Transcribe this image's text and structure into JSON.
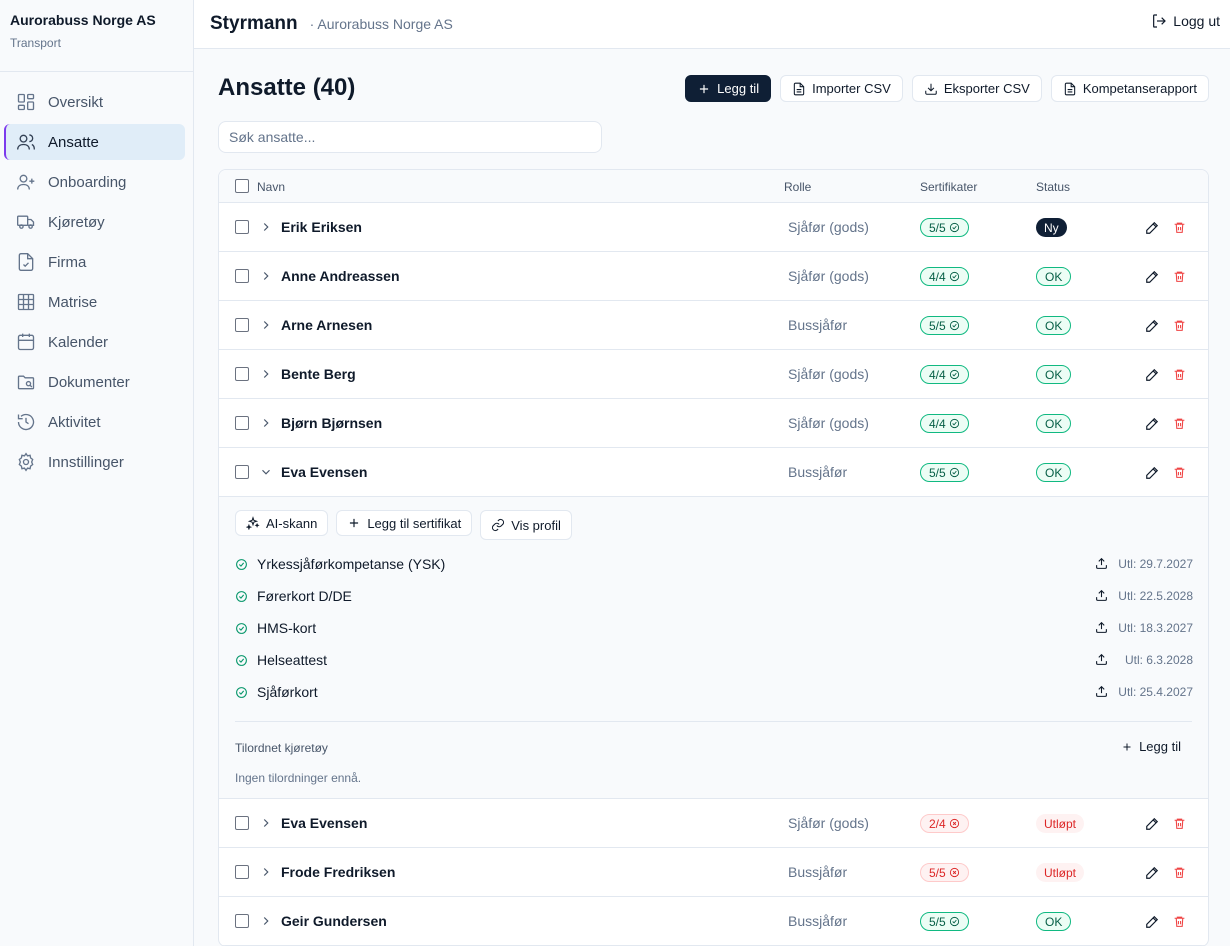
{
  "org": {
    "name": "Aurorabuss Norge AS",
    "sub": "Transport"
  },
  "nav": [
    {
      "label": "Oversikt",
      "icon": "dashboard-icon"
    },
    {
      "label": "Ansatte",
      "icon": "users-icon",
      "active": true
    },
    {
      "label": "Onboarding",
      "icon": "user-plus-icon"
    },
    {
      "label": "Kjøretøy",
      "icon": "truck-icon"
    },
    {
      "label": "Firma",
      "icon": "file-check-icon"
    },
    {
      "label": "Matrise",
      "icon": "grid-icon"
    },
    {
      "label": "Kalender",
      "icon": "calendar-icon"
    },
    {
      "label": "Dokumenter",
      "icon": "folder-icon"
    },
    {
      "label": "Aktivitet",
      "icon": "history-icon"
    },
    {
      "label": "Innstillinger",
      "icon": "gear-icon"
    }
  ],
  "header": {
    "title": "Styrmann",
    "subtitle": "· Aurorabuss Norge AS",
    "logout": "Logg ut"
  },
  "page": {
    "title": "Ansatte (40)",
    "actions": {
      "add": "Legg til",
      "import": "Importer CSV",
      "export": "Eksporter CSV",
      "report": "Kompetanserapport"
    },
    "search_placeholder": "Søk ansatte..."
  },
  "table": {
    "columns": {
      "name": "Navn",
      "role": "Rolle",
      "certs": "Sertifikater",
      "status": "Status"
    },
    "rows": [
      {
        "name": "Erik Eriksen",
        "role": "Sjåfør (gods)",
        "certs": "5/5",
        "cert_state": "ok",
        "status": "Ny",
        "status_kind": "ny"
      },
      {
        "name": "Anne Andreassen",
        "role": "Sjåfør (gods)",
        "certs": "4/4",
        "cert_state": "ok",
        "status": "OK",
        "status_kind": "ok"
      },
      {
        "name": "Arne Arnesen",
        "role": "Bussjåfør",
        "certs": "5/5",
        "cert_state": "ok",
        "status": "OK",
        "status_kind": "ok"
      },
      {
        "name": "Bente Berg",
        "role": "Sjåfør (gods)",
        "certs": "4/4",
        "cert_state": "ok",
        "status": "OK",
        "status_kind": "ok"
      },
      {
        "name": "Bjørn Bjørnsen",
        "role": "Sjåfør (gods)",
        "certs": "4/4",
        "cert_state": "ok",
        "status": "OK",
        "status_kind": "ok"
      },
      {
        "name": "Eva Evensen",
        "role": "Bussjåfør",
        "certs": "5/5",
        "cert_state": "ok",
        "status": "OK",
        "status_kind": "ok",
        "expanded": true
      },
      {
        "name": "Eva Evensen",
        "role": "Sjåfør (gods)",
        "certs": "2/4",
        "cert_state": "bad",
        "status": "Utløpt",
        "status_kind": "exp"
      },
      {
        "name": "Frode Fredriksen",
        "role": "Bussjåfør",
        "certs": "5/5",
        "cert_state": "bad",
        "status": "Utløpt",
        "status_kind": "exp"
      },
      {
        "name": "Geir Gundersen",
        "role": "Bussjåfør",
        "certs": "5/5",
        "cert_state": "ok",
        "status": "OK",
        "status_kind": "ok"
      }
    ]
  },
  "expanded": {
    "actions": {
      "ai_scan": "AI-skann",
      "add_cert": "Legg til sertifikat",
      "view_profile": "Vis profil"
    },
    "certificates": [
      {
        "name": "Yrkessjåførkompetanse (YSK)",
        "expires": "Utl: 29.7.2027"
      },
      {
        "name": "Førerkort D/DE",
        "expires": "Utl: 22.5.2028"
      },
      {
        "name": "HMS-kort",
        "expires": "Utl: 18.3.2027"
      },
      {
        "name": "Helseattest",
        "expires": "Utl: 6.3.2028"
      },
      {
        "name": "Sjåførkort",
        "expires": "Utl: 25.4.2027"
      }
    ],
    "vehicles_label": "Tilordnet kjøretøy",
    "vehicles_add": "Legg til",
    "vehicles_empty": "Ingen tilordninger ennå."
  },
  "colors": {
    "primary": "#0f1f35",
    "ok": "#10b981",
    "danger": "#dc2626",
    "accent": "#7c3aed"
  }
}
